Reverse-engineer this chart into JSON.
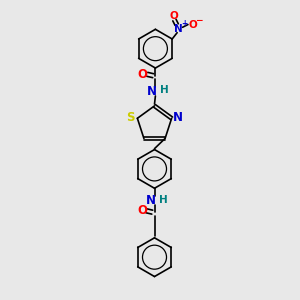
{
  "bg": "#e8e8e8",
  "black": "#000000",
  "blue": "#0000cd",
  "red": "#ff0000",
  "yellow": "#cccc00",
  "teal": "#008080",
  "lw": 1.2,
  "figsize": [
    3.0,
    3.0
  ],
  "dpi": 100,
  "xlim": [
    -1.5,
    1.5
  ],
  "ylim": [
    -2.8,
    3.8
  ]
}
